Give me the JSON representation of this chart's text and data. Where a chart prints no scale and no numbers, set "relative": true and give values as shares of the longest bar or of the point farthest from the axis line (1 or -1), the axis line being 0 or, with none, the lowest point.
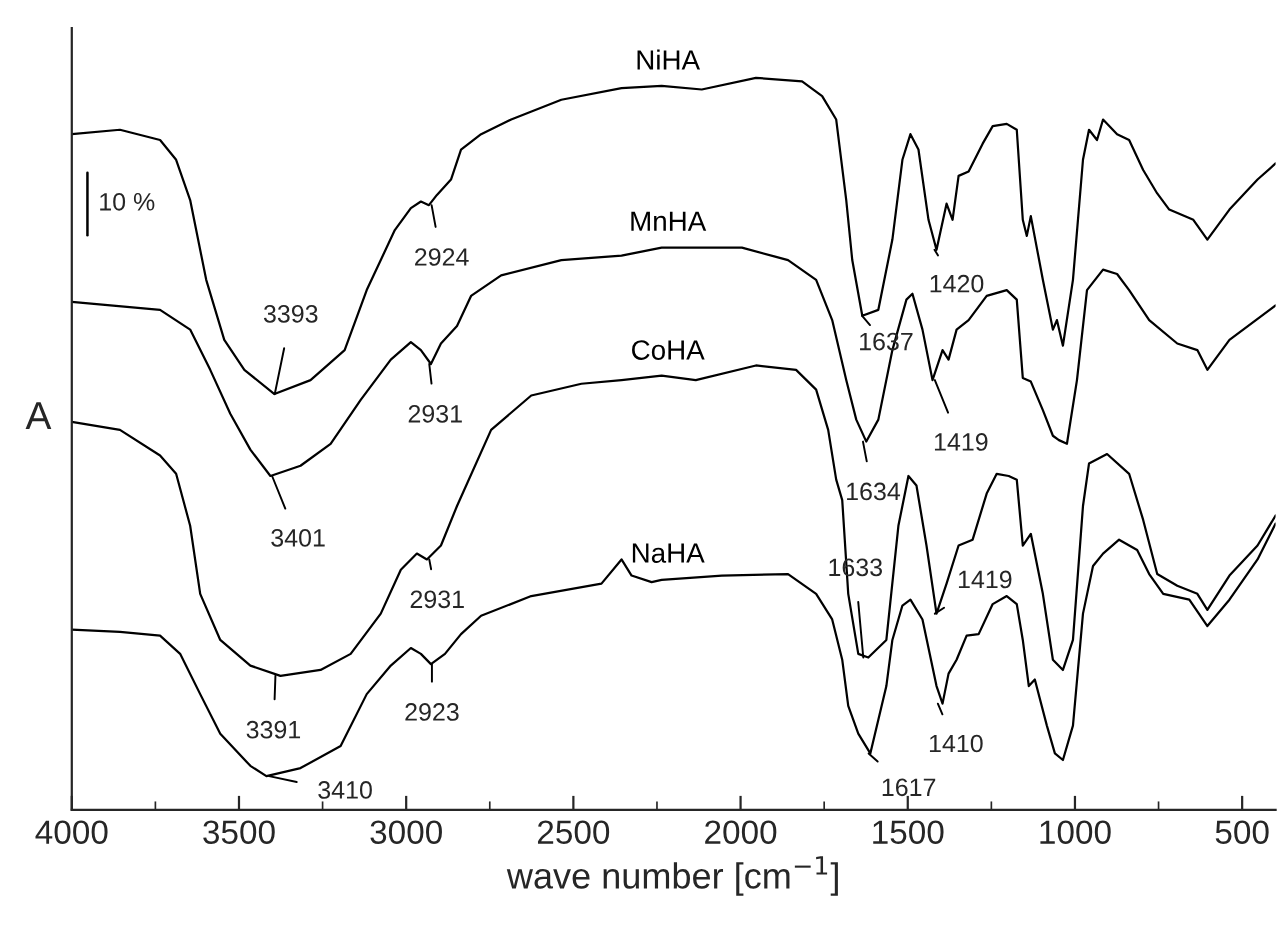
{
  "chart_data": {
    "type": "line",
    "relative": true,
    "xlabel": "wave number [cm$^{−1}$]",
    "ylabel": "A",
    "xlim": [
      4000,
      400
    ],
    "xticks": [
      4000,
      3500,
      3000,
      2500,
      2000,
      1500,
      1000,
      500
    ],
    "tick_labels": "x",
    "series": [
      {
        "name": "NiHA",
        "color": "#000000",
        "x": [
          4000,
          3856,
          3736,
          3688,
          3646,
          3598,
          3544,
          3484,
          3394,
          3286,
          3184,
          3118,
          3034,
          2986,
          2956,
          2932,
          2908,
          2866,
          2836,
          2776,
          2686,
          2536,
          2356,
          2236,
          2116,
          1954,
          1816,
          1756,
          1714,
          1684,
          1666,
          1636,
          1588,
          1546,
          1516,
          1492,
          1468,
          1438,
          1414,
          1384,
          1366,
          1348,
          1318,
          1276,
          1246,
          1204,
          1174,
          1156,
          1144,
          1132,
          1096,
          1066,
          1054,
          1036,
          1006,
          976,
          958,
          934,
          916,
          874,
          838,
          796,
          754,
          718,
          646,
          604,
          538,
          454,
          400
        ],
        "values": [
          0.923,
          0.929,
          0.915,
          0.888,
          0.833,
          0.724,
          0.642,
          0.601,
          0.568,
          0.587,
          0.628,
          0.71,
          0.792,
          0.822,
          0.831,
          0.826,
          0.84,
          0.861,
          0.902,
          0.923,
          0.943,
          0.97,
          0.986,
          0.989,
          0.984,
          1.0,
          0.995,
          0.975,
          0.943,
          0.833,
          0.751,
          0.675,
          0.683,
          0.779,
          0.888,
          0.923,
          0.902,
          0.806,
          0.765,
          0.828,
          0.806,
          0.866,
          0.872,
          0.91,
          0.934,
          0.937,
          0.929,
          0.806,
          0.784,
          0.811,
          0.724,
          0.656,
          0.669,
          0.634,
          0.724,
          0.888,
          0.929,
          0.915,
          0.943,
          0.923,
          0.915,
          0.874,
          0.842,
          0.82,
          0.806,
          0.779,
          0.82,
          0.861,
          0.883
        ]
      },
      {
        "name": "MnHA",
        "color": "#000000",
        "x": [
          4000,
          3736,
          3646,
          3586,
          3526,
          3466,
          3406,
          3316,
          3226,
          3136,
          3046,
          2986,
          2956,
          2926,
          2896,
          2848,
          2806,
          2716,
          2536,
          2356,
          2236,
          1996,
          1858,
          1774,
          1726,
          1684,
          1654,
          1624,
          1588,
          1546,
          1504,
          1486,
          1456,
          1426,
          1396,
          1378,
          1354,
          1318,
          1264,
          1204,
          1174,
          1156,
          1132,
          1096,
          1066,
          1048,
          1024,
          994,
          964,
          916,
          874,
          838,
          778,
          694,
          634,
          604,
          538,
          400
        ],
        "values": [
          0.694,
          0.683,
          0.656,
          0.601,
          0.541,
          0.492,
          0.456,
          0.47,
          0.5,
          0.56,
          0.615,
          0.639,
          0.628,
          0.609,
          0.637,
          0.661,
          0.702,
          0.73,
          0.751,
          0.757,
          0.768,
          0.768,
          0.751,
          0.724,
          0.669,
          0.587,
          0.533,
          0.503,
          0.533,
          0.628,
          0.697,
          0.705,
          0.656,
          0.587,
          0.628,
          0.615,
          0.656,
          0.669,
          0.702,
          0.71,
          0.697,
          0.59,
          0.585,
          0.546,
          0.511,
          0.505,
          0.5,
          0.587,
          0.71,
          0.738,
          0.732,
          0.71,
          0.669,
          0.637,
          0.628,
          0.601,
          0.642,
          0.689
        ]
      },
      {
        "name": "CoHA",
        "color": "#000000",
        "x": [
          4000,
          3856,
          3736,
          3688,
          3646,
          3616,
          3556,
          3466,
          3376,
          3256,
          3166,
          3076,
          3016,
          2968,
          2938,
          2896,
          2848,
          2746,
          2626,
          2476,
          2356,
          2236,
          2134,
          1954,
          1834,
          1774,
          1738,
          1714,
          1696,
          1678,
          1648,
          1618,
          1564,
          1528,
          1498,
          1474,
          1444,
          1414,
          1384,
          1348,
          1306,
          1264,
          1234,
          1198,
          1174,
          1156,
          1132,
          1096,
          1066,
          1036,
          1006,
          976,
          958,
          904,
          838,
          796,
          754,
          694,
          634,
          604,
          538,
          454,
          400
        ],
        "values": [
          0.53,
          0.519,
          0.484,
          0.459,
          0.388,
          0.295,
          0.232,
          0.197,
          0.183,
          0.191,
          0.213,
          0.268,
          0.328,
          0.35,
          0.342,
          0.361,
          0.415,
          0.519,
          0.566,
          0.582,
          0.587,
          0.593,
          0.587,
          0.607,
          0.601,
          0.574,
          0.519,
          0.451,
          0.423,
          0.295,
          0.213,
          0.208,
          0.232,
          0.388,
          0.456,
          0.443,
          0.361,
          0.268,
          0.309,
          0.361,
          0.369,
          0.432,
          0.459,
          0.456,
          0.451,
          0.361,
          0.377,
          0.295,
          0.205,
          0.191,
          0.232,
          0.415,
          0.473,
          0.486,
          0.459,
          0.396,
          0.322,
          0.306,
          0.295,
          0.273,
          0.32,
          0.361,
          0.402
        ]
      },
      {
        "name": "NaHA",
        "color": "#000000",
        "x": [
          4000,
          3856,
          3736,
          3676,
          3616,
          3556,
          3466,
          3418,
          3316,
          3196,
          3118,
          3046,
          2986,
          2956,
          2926,
          2884,
          2836,
          2776,
          2626,
          2416,
          2356,
          2326,
          2266,
          2236,
          2056,
          1858,
          1774,
          1726,
          1696,
          1678,
          1648,
          1612,
          1588,
          1564,
          1546,
          1516,
          1492,
          1456,
          1414,
          1396,
          1378,
          1354,
          1324,
          1288,
          1246,
          1204,
          1174,
          1156,
          1138,
          1120,
          1084,
          1060,
          1036,
          1006,
          976,
          946,
          916,
          868,
          814,
          778,
          736,
          658,
          604,
          538,
          454,
          400
        ],
        "values": [
          0.246,
          0.243,
          0.238,
          0.213,
          0.158,
          0.104,
          0.06,
          0.046,
          0.057,
          0.087,
          0.158,
          0.197,
          0.221,
          0.213,
          0.199,
          0.213,
          0.24,
          0.265,
          0.292,
          0.309,
          0.342,
          0.32,
          0.311,
          0.314,
          0.32,
          0.322,
          0.295,
          0.26,
          0.205,
          0.142,
          0.104,
          0.077,
          0.123,
          0.169,
          0.232,
          0.279,
          0.287,
          0.26,
          0.169,
          0.145,
          0.186,
          0.205,
          0.238,
          0.24,
          0.281,
          0.292,
          0.281,
          0.232,
          0.169,
          0.178,
          0.115,
          0.077,
          0.068,
          0.115,
          0.268,
          0.333,
          0.35,
          0.369,
          0.355,
          0.322,
          0.295,
          0.287,
          0.251,
          0.287,
          0.342,
          0.391
        ]
      }
    ],
    "annotations": [
      {
        "text": "3393",
        "x": 3393,
        "y": 0.568
      },
      {
        "text": "2924",
        "x": 2924,
        "y": 0.826
      },
      {
        "text": "3401",
        "x": 3401,
        "y": 0.456
      },
      {
        "text": "2931",
        "x": 2931,
        "y": 0.609
      },
      {
        "text": "1637",
        "x": 1637,
        "y": 0.675
      },
      {
        "text": "1420",
        "x": 1420,
        "y": 0.765
      },
      {
        "text": "1419",
        "x": 1419,
        "y": 0.587
      },
      {
        "text": "1634",
        "x": 1634,
        "y": 0.503
      },
      {
        "text": "2931",
        "x": 2931,
        "y": 0.342
      },
      {
        "text": "1633",
        "x": 1633,
        "y": 0.208
      },
      {
        "text": "1419",
        "x": 1419,
        "y": 0.268
      },
      {
        "text": "3391",
        "x": 3391,
        "y": 0.183
      },
      {
        "text": "2923",
        "x": 2923,
        "y": 0.199
      },
      {
        "text": "3410",
        "x": 3410,
        "y": 0.046
      },
      {
        "text": "1410",
        "x": 1410,
        "y": 0.145
      },
      {
        "text": "1617",
        "x": 1617,
        "y": 0.077
      },
      "10 %"
    ]
  }
}
